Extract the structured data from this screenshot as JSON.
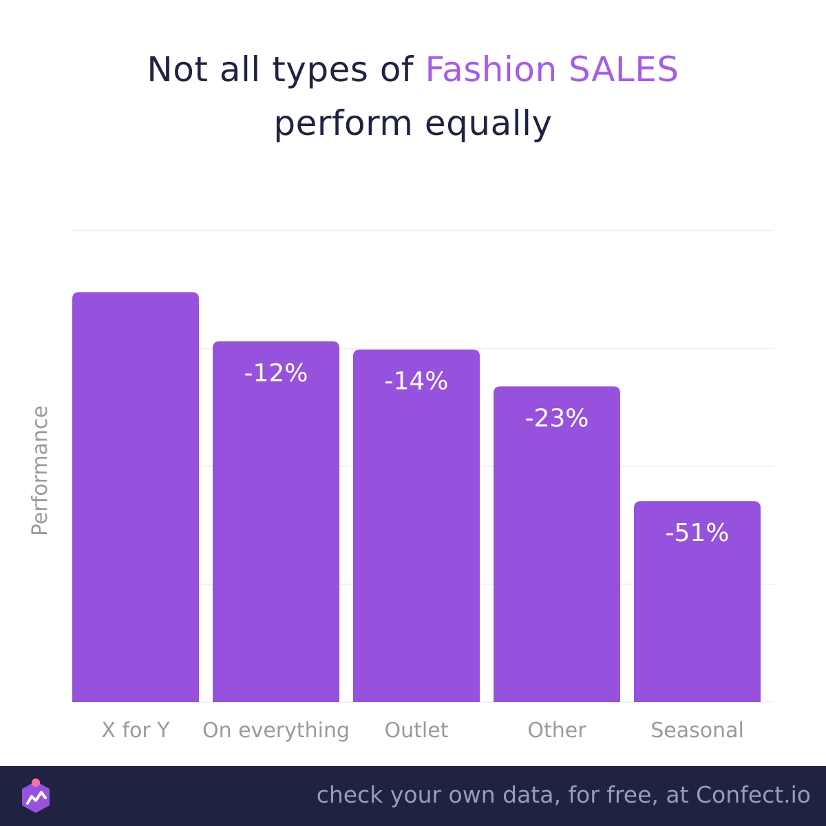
{
  "title": {
    "line1_prefix": "Not all types of ",
    "line1_accent": "Fashion SALES",
    "line2": "perform equally"
  },
  "footer": {
    "text": "check your own data, for free, at Confect.io",
    "logo_icon": "confect-logo-icon"
  },
  "colors": {
    "bar": "#9652dc",
    "accent": "#a45de3",
    "title": "#1f2240",
    "footer_bg": "#1f2240",
    "axis_text": "#9a9a9a"
  },
  "chart_data": {
    "type": "bar",
    "categories": [
      "X for Y",
      "On everything",
      "Outlet",
      "Other",
      "Seasonal"
    ],
    "values": [
      100,
      88,
      86,
      77,
      49
    ],
    "value_labels": [
      "",
      "-12%",
      "-14%",
      "-23%",
      "-51%"
    ],
    "ylabel": "Performance",
    "xlabel": "",
    "ylim": [
      0,
      115
    ],
    "grid": true,
    "y_tick_labels": false
  }
}
